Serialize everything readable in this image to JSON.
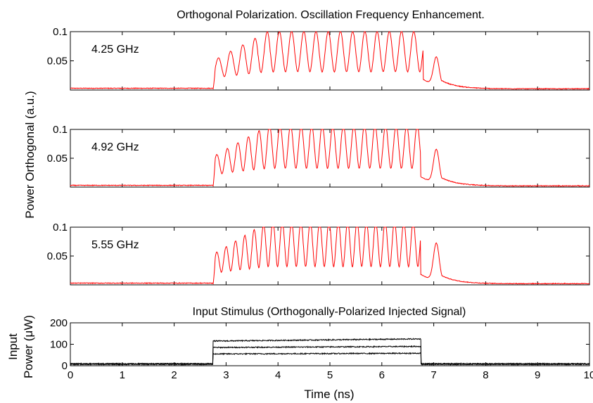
{
  "chart_data": [
    {
      "type": "line",
      "title": "Orthogonal Polarization. Oscillation Frequency Enhancement.",
      "annotation": "4.25 GHz",
      "ylim": [
        0,
        0.1
      ],
      "yticks": [
        "0.05",
        "0.1"
      ],
      "xlim": [
        0,
        10
      ],
      "grid": false,
      "series": [
        {
          "color": "#ff0000",
          "t_on": 2.75,
          "t_off": 6.8,
          "frequency_ghz": 4.25,
          "first_peak": 2.85,
          "peak_level": 0.083,
          "trough_level": 0.014,
          "baseline": 0.002,
          "tail_peak_t": 7.05,
          "tail_peak": 0.048
        }
      ]
    },
    {
      "type": "line",
      "annotation": "4.92 GHz",
      "ylim": [
        0,
        0.1
      ],
      "yticks": [
        "0.05",
        "0.1"
      ],
      "xlim": [
        0,
        10
      ],
      "grid": false,
      "series": [
        {
          "color": "#ff0000",
          "t_on": 2.75,
          "t_off": 6.75,
          "frequency_ghz": 4.92,
          "first_peak": 2.82,
          "peak_level": 0.088,
          "trough_level": 0.014,
          "baseline": 0.002,
          "tail_peak_t": 7.05,
          "tail_peak": 0.058
        }
      ]
    },
    {
      "type": "line",
      "annotation": "5.55 GHz",
      "ylim": [
        0,
        0.1
      ],
      "yticks": [
        "0.05",
        "0.1"
      ],
      "xlim": [
        0,
        10
      ],
      "grid": false,
      "series": [
        {
          "color": "#ff0000",
          "t_on": 2.75,
          "t_off": 6.75,
          "frequency_ghz": 5.55,
          "first_peak": 2.82,
          "peak_level": 0.09,
          "trough_level": 0.012,
          "baseline": 0.002,
          "tail_peak_t": 7.05,
          "tail_peak": 0.065
        }
      ]
    },
    {
      "type": "line",
      "title": "Input Stimulus (Orthogonally-Polarized Injected Signal)",
      "xlabel": "Time (ns)",
      "ylabel": [
        "Input",
        "Power (μW)"
      ],
      "ylim": [
        0,
        200
      ],
      "yticks": [
        "0",
        "100",
        "200"
      ],
      "xlim": [
        0,
        10
      ],
      "xticks": [
        "0",
        "1",
        "2",
        "3",
        "4",
        "5",
        "6",
        "7",
        "8",
        "9",
        "10"
      ],
      "grid": false,
      "series": [
        {
          "color": "#000000",
          "t_on": 2.75,
          "t_off": 6.75,
          "level_start": 115,
          "level_end": 125,
          "baseline": 8
        },
        {
          "color": "#000000",
          "t_on": 2.75,
          "t_off": 6.75,
          "level_start": 85,
          "level_end": 90,
          "baseline": 8
        },
        {
          "color": "#000000",
          "t_on": 2.75,
          "t_off": 6.75,
          "level_start": 55,
          "level_end": 58,
          "baseline": 8
        }
      ]
    }
  ],
  "shared_ylabel": "Power Orthogonal (a.u.)"
}
